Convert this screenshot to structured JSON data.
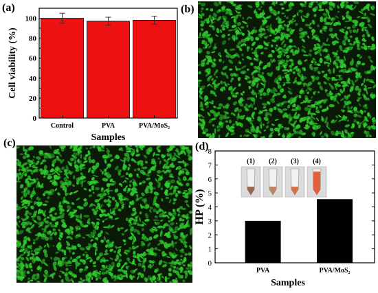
{
  "panels": {
    "a": "(a)",
    "b": "(b)",
    "c": "(c)",
    "d": "(d)"
  },
  "micrograph_color": "#2ecc2e",
  "chart_data": [
    {
      "panel": "(a)",
      "type": "bar",
      "categories": [
        "Control",
        "PVA",
        "PVA/MoS₂"
      ],
      "values": [
        100,
        97,
        98
      ],
      "errors": [
        5,
        4,
        4
      ],
      "ylabel": "Cell viability (%)",
      "xlabel": "Samples",
      "ylim": [
        0,
        110
      ],
      "yticks": [
        0,
        20,
        40,
        60,
        80,
        100
      ],
      "bar_color": "#ee1111",
      "grid": false
    },
    {
      "panel": "(d)",
      "type": "bar",
      "categories": [
        "PVA",
        "PVA/MoS₂"
      ],
      "values": [
        3.0,
        4.55
      ],
      "ylabel": "HP (%)",
      "xlabel": "Samples",
      "ylim": [
        0,
        8
      ],
      "yticks": [
        0,
        1,
        2,
        3,
        4,
        5,
        6,
        7,
        8
      ],
      "bar_color": "#000000",
      "grid": false,
      "inset_labels": [
        "(1)",
        "(2)",
        "(3)",
        "(4)"
      ]
    }
  ]
}
